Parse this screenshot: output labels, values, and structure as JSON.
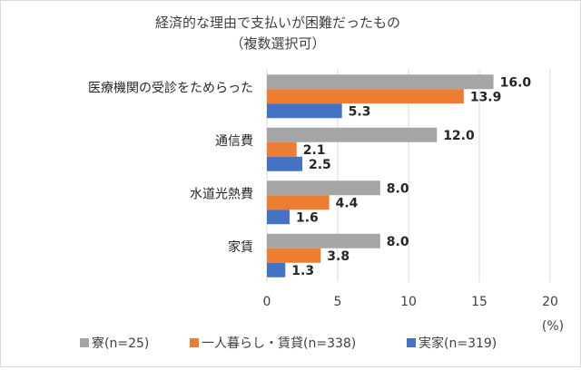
{
  "chart_data": {
    "type": "bar",
    "orientation": "horizontal",
    "title_line1": "経済的な理由で支払いが困難だったもの",
    "title_line2": "（複数選択可）",
    "categories": [
      "医療機関の受診をためらった",
      "通信費",
      "水道光熱費",
      "家賃"
    ],
    "series": [
      {
        "name": "寮(n=25)",
        "color": "#a5a5a5",
        "values": [
          16.0,
          12.0,
          8.0,
          8.0
        ],
        "labels": [
          "16.0",
          "12.0",
          "8.0",
          "8.0"
        ]
      },
      {
        "name": "一人暮らし・賃貸(n=338)",
        "color": "#ed7d31",
        "values": [
          13.9,
          2.1,
          4.4,
          3.8
        ],
        "labels": [
          "13.9",
          "2.1",
          "4.4",
          "3.8"
        ]
      },
      {
        "name": "実家(n=319)",
        "color": "#4472c4",
        "values": [
          5.3,
          2.5,
          1.6,
          1.3
        ],
        "labels": [
          "5.3",
          "2.5",
          "1.6",
          "1.3"
        ]
      }
    ],
    "xlim": [
      0,
      20
    ],
    "xticks": [
      "0",
      "5",
      "10",
      "15",
      "20"
    ],
    "unit": "(%)",
    "grid": "vertical",
    "legend_position": "bottom"
  }
}
